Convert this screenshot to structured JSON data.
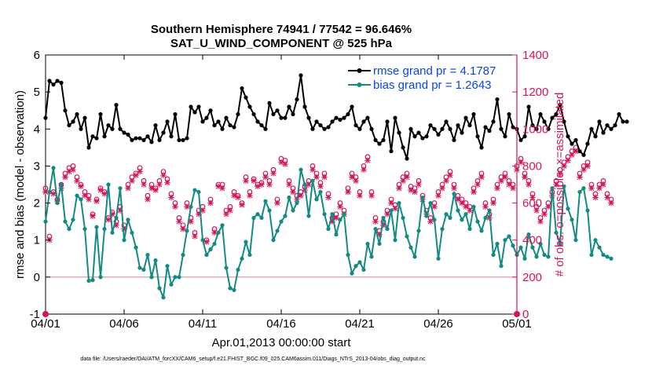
{
  "figure": {
    "title_line1": "Southern Hemisphere 74941 / 77542 = 96.646%",
    "title_line2": "SAT_U_WIND_COMPONENT @ 525 hPa",
    "footer": "data file: /Users/raeder/DAI/ATM_forcXX/CAM6_setup/f.e21.FHIST_BGC.f09_025.CAM6assim.011/Diags_NTrS_2013-04/obs_diag_output.nc"
  },
  "colors": {
    "rmse": "#000000",
    "bias": "#138a84",
    "obs": "#d4145a",
    "legend_text": "#0a46e6",
    "zero_line": "#c8a0a0"
  },
  "chart_data": {
    "type": "line",
    "xlabel": "Apr.01,2013 00:00:00 start",
    "ylabel": "rmse and bias (model - observation)",
    "y2label": "# of obs: o=possible; ×=assimilated",
    "xlim": [
      0,
      30
    ],
    "ylim": [
      -1,
      6
    ],
    "y2lim": [
      0,
      1400
    ],
    "xticks": [
      0,
      5,
      10,
      15,
      20,
      25,
      30
    ],
    "xtick_labels": [
      "04/01",
      "04/06",
      "04/11",
      "04/16",
      "04/21",
      "04/26",
      "05/01"
    ],
    "yticks": [
      -1,
      0,
      1,
      2,
      3,
      4,
      5,
      6
    ],
    "y2ticks": [
      0,
      200,
      400,
      600,
      800,
      1000,
      1200,
      1400
    ],
    "grid": false,
    "legend_position": "top-right",
    "zero_line": true,
    "x_step_days": 0.25,
    "series": [
      {
        "name": "rmse grand pr = 4.1787",
        "axis": "left",
        "values": [
          4.3,
          5.3,
          5.2,
          5.3,
          5.25,
          4.5,
          4.1,
          4.2,
          4.4,
          4.0,
          4.3,
          3.5,
          3.8,
          3.75,
          4.4,
          3.8,
          4.1,
          4.0,
          4.65,
          4.0,
          3.9,
          3.85,
          3.7,
          3.75,
          3.75,
          3.7,
          3.8,
          3.65,
          4.1,
          3.7,
          3.9,
          4.2,
          3.8,
          4.4,
          3.7,
          3.7,
          3.75,
          4.6,
          4.45,
          4.6,
          4.2,
          4.3,
          4.5,
          4.1,
          4.2,
          4.0,
          4.3,
          4.1,
          4.05,
          4.4,
          5.1,
          4.85,
          4.6,
          4.4,
          4.2,
          4.1,
          4.0,
          4.7,
          4.4,
          4.5,
          4.3,
          4.3,
          4.6,
          4.4,
          4.8,
          5.45,
          4.6,
          4.3,
          4.0,
          4.2,
          4.1,
          4.0,
          4.05,
          4.2,
          4.3,
          4.25,
          4.3,
          4.4,
          4.6,
          4.1,
          4.0,
          4.2,
          4.3,
          4.0,
          3.7,
          3.6,
          3.7,
          4.2,
          3.4,
          4.3,
          3.9,
          3.5,
          3.2,
          4.0,
          3.8,
          3.9,
          3.75,
          3.8,
          4.1,
          4.0,
          3.85,
          4.0,
          4.2,
          4.0,
          3.7,
          4.1,
          3.9,
          4.3,
          4.1,
          4.4,
          3.8,
          3.5,
          4.05,
          3.95,
          4.2,
          4.8,
          4.0,
          3.8,
          4.4,
          4.05,
          4.0,
          3.7,
          3.8,
          4.6,
          4.1,
          4.0,
          4.4,
          4.2,
          4.0,
          4.3,
          4.4,
          4.65,
          4.2,
          3.8,
          3.6,
          3.7,
          3.4,
          3.3,
          3.6,
          4.0,
          3.8,
          4.2,
          3.9,
          4.1,
          4.0,
          4.1,
          4.4,
          4.2,
          4.2
        ]
      },
      {
        "name": "bias grand pr = 1.2643",
        "axis": "left",
        "values": [
          1.5,
          2.3,
          2.95,
          2.0,
          2.5,
          1.5,
          1.3,
          1.55,
          2.2,
          2.1,
          1.3,
          -0.1,
          -0.08,
          1.35,
          0.0,
          1.3,
          2.5,
          1.2,
          1.6,
          2.4,
          1.0,
          1.55,
          1.2,
          0.8,
          0.25,
          0.2,
          0.6,
          0.0,
          0.45,
          -0.3,
          -0.55,
          0.3,
          -0.2,
          0.0,
          0.0,
          0.6,
          1.25,
          1.9,
          2.35,
          2.3,
          1.0,
          0.6,
          0.75,
          0.9,
          1.2,
          1.4,
          0.25,
          -0.3,
          -0.35,
          0.2,
          0.5,
          0.95,
          0.6,
          1.6,
          1.7,
          1.6,
          2.05,
          1.8,
          1.0,
          1.25,
          1.5,
          1.65,
          2.15,
          1.8,
          2.0,
          2.9,
          2.5,
          1.65,
          2.6,
          2.1,
          2.3,
          1.7,
          1.3,
          1.7,
          1.15,
          1.55,
          1.7,
          0.6,
          0.1,
          0.3,
          0.4,
          0.2,
          0.9,
          0.55,
          1.3,
          0.9,
          1.6,
          1.3,
          1.8,
          1.0,
          2.0,
          1.6,
          1.1,
          0.8,
          0.55,
          1.25,
          2.15,
          1.65,
          2.0,
          1.55,
          0.5,
          1.3,
          1.7,
          1.6,
          2.25,
          1.8,
          1.55,
          1.7,
          1.3,
          1.9,
          1.5,
          1.25,
          1.6,
          1.8,
          0.6,
          0.9,
          0.3,
          1.0,
          1.1,
          0.85,
          0.6,
          0.8,
          0.5,
          1.15,
          0.8,
          0.55,
          0.9,
          0.6,
          0.55,
          2.4,
          1.2,
          0.9,
          2.45,
          1.85,
          1.55,
          1.0,
          2.3,
          2.4,
          1.8,
          0.6,
          1.0,
          0.8,
          0.6,
          0.55,
          0.5
        ]
      },
      {
        "name": "possible",
        "axis": "right",
        "marker": "o",
        "values": [
          680,
          420,
          660,
          620,
          700,
          760,
          790,
          800,
          740,
          700,
          660,
          640,
          540,
          620,
          680,
          660,
          520,
          550,
          500,
          580,
          480,
          700,
          740,
          760,
          790,
          720,
          640,
          700,
          680,
          720,
          770,
          730,
          650,
          600,
          520,
          480,
          600,
          520,
          440,
          560,
          580,
          400,
          620,
          460,
          700,
          700,
          560,
          580,
          660,
          640,
          600,
          740,
          660,
          730,
          700,
          710,
          760,
          720,
          780,
          620,
          840,
          830,
          720,
          680,
          640,
          660,
          690,
          720,
          800,
          760,
          710,
          760,
          650,
          520,
          540,
          600,
          560,
          680,
          760,
          740,
          660,
          800,
          850,
          660,
          520,
          450,
          500,
          560,
          620,
          590,
          700,
          740,
          760,
          690,
          680,
          720,
          640,
          560,
          520,
          600,
          660,
          700,
          740,
          770,
          700,
          640,
          620,
          600,
          580,
          680,
          720,
          760,
          600,
          540,
          620,
          700,
          740,
          760,
          720,
          700,
          800,
          840,
          760,
          720,
          650,
          580,
          520,
          560,
          600,
          660,
          720,
          780,
          820,
          850,
          880,
          900,
          760,
          800,
          820,
          700,
          650,
          700,
          720,
          650,
          620
        ]
      },
      {
        "name": "assimilated",
        "axis": "right",
        "marker": "x",
        "values": [
          660,
          400,
          650,
          610,
          680,
          740,
          770,
          780,
          720,
          690,
          640,
          620,
          530,
          610,
          670,
          650,
          510,
          540,
          480,
          560,
          460,
          680,
          720,
          750,
          770,
          700,
          620,
          680,
          670,
          700,
          750,
          710,
          630,
          580,
          500,
          460,
          580,
          500,
          420,
          540,
          560,
          390,
          600,
          440,
          690,
          680,
          540,
          560,
          640,
          630,
          590,
          720,
          640,
          720,
          690,
          700,
          740,
          700,
          760,
          600,
          820,
          810,
          700,
          660,
          620,
          640,
          670,
          700,
          780,
          740,
          690,
          740,
          630,
          500,
          520,
          580,
          540,
          660,
          740,
          720,
          640,
          780,
          830,
          640,
          500,
          430,
          480,
          540,
          600,
          570,
          680,
          720,
          740,
          670,
          660,
          700,
          620,
          540,
          500,
          580,
          640,
          680,
          720,
          750,
          680,
          620,
          600,
          580,
          560,
          660,
          700,
          740,
          580,
          520,
          600,
          680,
          720,
          740,
          700,
          680,
          780,
          820,
          740,
          700,
          630,
          560,
          500,
          540,
          580,
          640,
          700,
          760,
          800,
          830,
          860,
          880,
          740,
          780,
          800,
          680,
          630,
          680,
          700,
          630,
          600
        ]
      }
    ]
  }
}
